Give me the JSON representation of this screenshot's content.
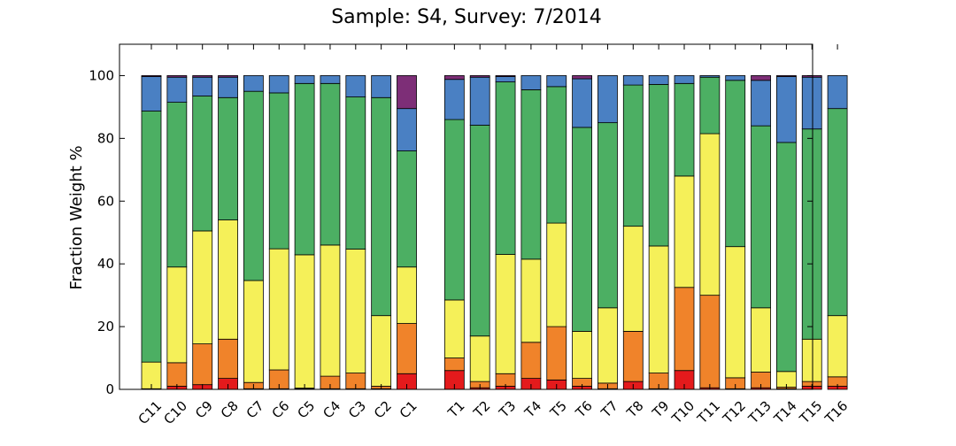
{
  "chart_data": {
    "type": "bar",
    "stacked": true,
    "title": "Sample: S4, Survey: 7/2014",
    "xlabel": "",
    "ylabel": "Fraction Weight %",
    "ylim": [
      0,
      110
    ],
    "yticks": [
      0,
      20,
      40,
      60,
      80,
      100
    ],
    "grid": false,
    "legend": "none",
    "colors": [
      "#e41a1c",
      "#f0832a",
      "#f5f059",
      "#4caf63",
      "#4a80c3",
      "#7d2e77"
    ],
    "categories": [
      "C11",
      "C10",
      "C9",
      "C8",
      "C7",
      "C6",
      "C5",
      "C4",
      "C3",
      "C2",
      "C1",
      "T1",
      "T2",
      "T3",
      "T4",
      "T5",
      "T6",
      "T7",
      "T8",
      "T9",
      "T10",
      "T11",
      "T12",
      "T13",
      "T14",
      "T15",
      "T16"
    ],
    "segments": [
      [
        0,
        0.2,
        8.5,
        80,
        11,
        0.3
      ],
      [
        1,
        7.5,
        30.5,
        52.5,
        8,
        0.5
      ],
      [
        1.5,
        13,
        36,
        43,
        6,
        0.5
      ],
      [
        3.5,
        12.5,
        38,
        39,
        6.5,
        0.5
      ],
      [
        0.2,
        2,
        32.5,
        60.3,
        5,
        0
      ],
      [
        0.2,
        6,
        38.6,
        49.7,
        5.5,
        0
      ],
      [
        0.2,
        0.2,
        42.5,
        54.6,
        2.5,
        0
      ],
      [
        0.2,
        4,
        41.8,
        51.5,
        2.5,
        0
      ],
      [
        0.2,
        5,
        39.5,
        48.5,
        6.8,
        0
      ],
      [
        0.2,
        0.8,
        22.5,
        69.5,
        7,
        0
      ],
      [
        5,
        16,
        18,
        37,
        13.5,
        10.5
      ],
      [
        6,
        4,
        18.5,
        57.5,
        12.8,
        1.2
      ],
      [
        0.5,
        2,
        14.5,
        67.2,
        15.3,
        0.5
      ],
      [
        1,
        4,
        38,
        55,
        1.7,
        0.3
      ],
      [
        3.5,
        11.5,
        26.5,
        54,
        4.5,
        0
      ],
      [
        3,
        17,
        33,
        43.5,
        3.5,
        0
      ],
      [
        1,
        2.5,
        15,
        65,
        15.5,
        1
      ],
      [
        0.2,
        1.8,
        24,
        59,
        15,
        0
      ],
      [
        2.5,
        16,
        33.5,
        45,
        3,
        0
      ],
      [
        0.2,
        5,
        40.5,
        51.5,
        2.8,
        0
      ],
      [
        6,
        26.5,
        35.5,
        29.5,
        2.5,
        0
      ],
      [
        0.5,
        29.5,
        51.5,
        18,
        0.5,
        0
      ],
      [
        0.2,
        3.5,
        41.8,
        53,
        1.5,
        0
      ],
      [
        0.5,
        5,
        20.5,
        58,
        14.5,
        1.5
      ],
      [
        0.2,
        0.5,
        5,
        73,
        21,
        0.3
      ],
      [
        1,
        1.5,
        13.5,
        67,
        16.5,
        0.5
      ],
      [
        1,
        3,
        19.5,
        66,
        10.5,
        0
      ]
    ]
  }
}
